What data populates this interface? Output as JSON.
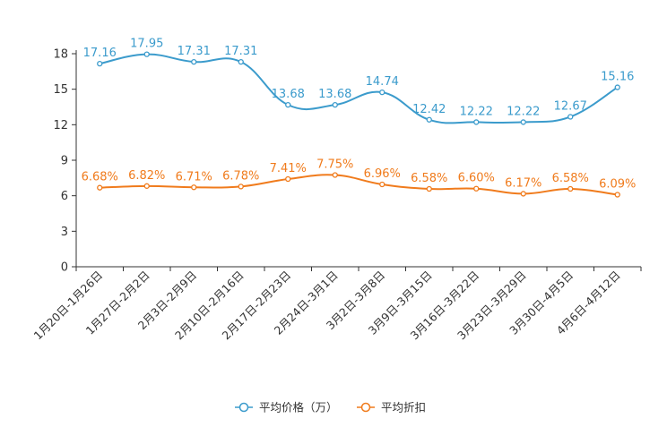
{
  "chart_data": {
    "type": "line",
    "categories": [
      "1月20日-1月26日",
      "1月27日-2月2日",
      "2月3日-2月9日",
      "2月10日-2月16日",
      "2月17日-2月23日",
      "2月24日-3月1日",
      "3月2日-3月8日",
      "3月9日-3月15日",
      "3月16日-3月22日",
      "3月23日-3月29日",
      "3月30日-4月5日",
      "4月6日-4月12日"
    ],
    "ylim": [
      0,
      18
    ],
    "yticks": [
      0,
      3,
      6,
      9,
      12,
      15,
      18
    ],
    "series": [
      {
        "name": "平均价格（万）",
        "color": "#3b9bcc",
        "values": [
          17.16,
          17.95,
          17.31,
          17.31,
          13.68,
          13.68,
          14.74,
          12.42,
          12.22,
          12.22,
          12.67,
          15.16
        ],
        "labels": [
          "17.16",
          "17.95",
          "17.31",
          "17.31",
          "13.68",
          "13.68",
          "14.74",
          "12.42",
          "12.22",
          "12.22",
          "12.67",
          "15.16"
        ]
      },
      {
        "name": "平均折扣",
        "color": "#f07b1c",
        "values": [
          6.68,
          6.82,
          6.71,
          6.78,
          7.41,
          7.75,
          6.96,
          6.58,
          6.6,
          6.17,
          6.58,
          6.09
        ],
        "labels": [
          "6.68%",
          "6.82%",
          "6.71%",
          "6.78%",
          "7.41%",
          "7.75%",
          "6.96%",
          "6.58%",
          "6.60%",
          "6.17%",
          "6.58%",
          "6.09%"
        ]
      }
    ],
    "title": "",
    "xlabel": "",
    "ylabel": "",
    "legend_position": "bottom-center"
  }
}
